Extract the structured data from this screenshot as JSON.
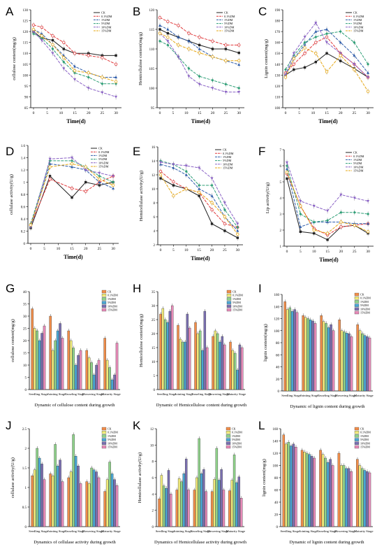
{
  "colors": {
    "series": [
      "#222222",
      "#e0393b",
      "#2f5dab",
      "#2f9f77",
      "#8b63c6",
      "#e6a817"
    ],
    "bars": [
      "#f28e4a",
      "#f0ea7a",
      "#8fd28a",
      "#4aa6d4",
      "#7a6fb0",
      "#e78bb9"
    ]
  },
  "line_legend": [
    "CK",
    "0.1%DM",
    "1%DM",
    "5%DM",
    "10%DM",
    "15%DM"
  ],
  "bar_legend": [
    "CK",
    "0.1%DM",
    "1%DM",
    "5%DM",
    "10%DM",
    "15%DM"
  ],
  "stages": [
    "Seedling Stage",
    "Jointing Stage",
    "Tasseling Stage",
    "Flowering Stage",
    "Maturity Stage"
  ],
  "chart_data": [
    {
      "panel": "A",
      "type": "line",
      "xlabel": "Time(d)",
      "ylabel": "cellulose content(mg/g)",
      "x": [
        0,
        3,
        7,
        11,
        15,
        20,
        25,
        30
      ],
      "xticks": [
        0,
        5,
        10,
        15,
        20,
        25,
        30
      ],
      "ylim": [
        85,
        130
      ],
      "yticks": [
        85,
        90,
        95,
        100,
        105,
        110,
        115,
        120,
        125,
        130
      ],
      "series": [
        {
          "name": "CK",
          "values": [
            120,
            117,
            116,
            112,
            110,
            110,
            109,
            109
          ]
        },
        {
          "name": "0.1%DM",
          "values": [
            123,
            122,
            118,
            115,
            110,
            109,
            108,
            105
          ]
        },
        {
          "name": "1%DM",
          "values": [
            121,
            119,
            114,
            109,
            104,
            101,
            99,
            99
          ]
        },
        {
          "name": "5%DM",
          "values": [
            119,
            117,
            112,
            106,
            101,
            99,
            96,
            96
          ]
        },
        {
          "name": "10%DM",
          "values": [
            120,
            116,
            110,
            103,
            98,
            94,
            92,
            90
          ]
        },
        {
          "name": "15%DM",
          "values": [
            121,
            118,
            114,
            108,
            102,
            101,
            99,
            97
          ]
        }
      ]
    },
    {
      "panel": "B",
      "type": "line",
      "xlabel": "Time(d)",
      "ylabel": "Hemicellulose content(mg/g)",
      "x": [
        0,
        3,
        7,
        11,
        15,
        20,
        25,
        30
      ],
      "xticks": [
        0,
        5,
        10,
        15,
        20,
        25,
        30
      ],
      "ylim": [
        95,
        120
      ],
      "yticks": [
        95,
        100,
        105,
        110,
        115,
        120
      ],
      "series": [
        {
          "name": "CK",
          "values": [
            115,
            114,
            113,
            112,
            111,
            110,
            110,
            109
          ]
        },
        {
          "name": "0.1%DM",
          "values": [
            118,
            117,
            116,
            114,
            113,
            112,
            111,
            111
          ]
        },
        {
          "name": "1%DM",
          "values": [
            116,
            115,
            113,
            112,
            110,
            108,
            107,
            106
          ]
        },
        {
          "name": "5%DM",
          "values": [
            112,
            111,
            108,
            105,
            103,
            102,
            101,
            100
          ]
        },
        {
          "name": "10%DM",
          "values": [
            114,
            112,
            108,
            103,
            101,
            100,
            99,
            99
          ]
        },
        {
          "name": "15%DM",
          "values": [
            114,
            113,
            111,
            110,
            109,
            108,
            107,
            107
          ]
        }
      ]
    },
    {
      "panel": "C",
      "type": "line",
      "xlabel": "Time(d)",
      "ylabel": "Lignin content(mg/g)",
      "x": [
        0,
        3,
        7,
        11,
        15,
        20,
        25,
        30
      ],
      "xticks": [
        0,
        5,
        10,
        15,
        20,
        25,
        30
      ],
      "ylim": [
        100,
        190
      ],
      "yticks": [
        100,
        110,
        120,
        130,
        140,
        150,
        160,
        170,
        180,
        190
      ],
      "series": [
        {
          "name": "CK",
          "values": [
            130,
            135,
            137,
            142,
            150,
            143,
            136,
            128
          ]
        },
        {
          "name": "0.1%DM",
          "values": [
            132,
            140,
            150,
            160,
            165,
            150,
            140,
            128
          ]
        },
        {
          "name": "1%DM",
          "values": [
            130,
            145,
            158,
            170,
            172,
            160,
            148,
            132
          ]
        },
        {
          "name": "5%DM",
          "values": [
            135,
            148,
            160,
            165,
            168,
            170,
            160,
            140
          ]
        },
        {
          "name": "10%DM",
          "values": [
            130,
            150,
            165,
            178,
            160,
            150,
            140,
            128
          ]
        },
        {
          "name": "15%DM",
          "values": [
            128,
            145,
            155,
            150,
            133,
            148,
            135,
            115
          ]
        }
      ]
    },
    {
      "panel": "D",
      "type": "line",
      "xlabel": "Time(d)",
      "ylabel": "cellulase activity(U/g)",
      "x": [
        0,
        7,
        15,
        20,
        25,
        30
      ],
      "xticks": [
        0,
        5,
        10,
        15,
        20,
        25,
        30
      ],
      "ylim": [
        0,
        1.6
      ],
      "yticks": [
        0,
        0.2,
        0.4,
        0.6,
        0.8,
        1.0,
        1.2,
        1.4,
        1.6
      ],
      "series": [
        {
          "name": "CK",
          "values": [
            0.25,
            1.1,
            0.75,
            1.0,
            0.95,
            1.0
          ]
        },
        {
          "name": "0.1%DM",
          "values": [
            0.3,
            1.05,
            0.9,
            0.85,
            1.0,
            1.1
          ]
        },
        {
          "name": "1%DM",
          "values": [
            0.28,
            1.3,
            1.25,
            1.2,
            1.0,
            0.9
          ]
        },
        {
          "name": "5%DM",
          "values": [
            0.32,
            1.35,
            1.35,
            1.25,
            1.1,
            1.0
          ]
        },
        {
          "name": "10%DM",
          "values": [
            0.27,
            1.38,
            1.4,
            1.2,
            1.15,
            1.1
          ]
        },
        {
          "name": "15%DM",
          "values": [
            0.3,
            1.25,
            1.3,
            1.25,
            1.05,
            0.95
          ]
        }
      ]
    },
    {
      "panel": "E",
      "type": "line",
      "xlabel": "Time(d)",
      "ylabel": "Hemicellulase activity(U/g)",
      "x": [
        0,
        5,
        10,
        15,
        20,
        25,
        30
      ],
      "xticks": [
        0,
        5,
        10,
        15,
        20,
        25,
        30
      ],
      "ylim": [
        2,
        16
      ],
      "yticks": [
        2,
        4,
        6,
        8,
        10,
        12,
        14,
        16
      ],
      "series": [
        {
          "name": "CK",
          "values": [
            11.5,
            10.5,
            10,
            9,
            5,
            4,
            3
          ]
        },
        {
          "name": "0.1%DM",
          "values": [
            12.5,
            11,
            10,
            9.5,
            7,
            5,
            4.5
          ]
        },
        {
          "name": "1%DM",
          "values": [
            13.5,
            13,
            12,
            10,
            9,
            6,
            4
          ]
        },
        {
          "name": "5%DM",
          "values": [
            14,
            13.5,
            12.5,
            10.5,
            10.5,
            7,
            4.5
          ]
        },
        {
          "name": "10%DM",
          "values": [
            13.8,
            13.5,
            13.3,
            13,
            11.5,
            8,
            5
          ]
        },
        {
          "name": "15%DM",
          "values": [
            12,
            9,
            10,
            9.5,
            8,
            6,
            3.5
          ]
        }
      ]
    },
    {
      "panel": "F",
      "type": "line",
      "xlabel": "Time(d)",
      "ylabel": "Lip activity(U/g)",
      "x": [
        0,
        5,
        10,
        15,
        20,
        25,
        30
      ],
      "xticks": [
        0,
        5,
        10,
        15,
        20,
        25,
        30
      ],
      "ylim": [
        1,
        7
      ],
      "yticks": [
        1,
        2,
        3,
        4,
        5,
        6,
        7
      ],
      "series": [
        {
          "name": "CK",
          "values": [
            5.2,
            1.9,
            1.8,
            1.4,
            2.2,
            2.3,
            1.8
          ]
        },
        {
          "name": "0.1%DM",
          "values": [
            5.5,
            3.5,
            2.1,
            1.7,
            2.2,
            2.3,
            2.4
          ]
        },
        {
          "name": "1%DM",
          "values": [
            5.8,
            2.2,
            2.5,
            2.5,
            2.5,
            2.4,
            2.4
          ]
        },
        {
          "name": "5%DM",
          "values": [
            6.0,
            3.0,
            2.5,
            2.6,
            3.1,
            3.1,
            3.0
          ]
        },
        {
          "name": "10%DM",
          "values": [
            6.2,
            3.8,
            3.5,
            3.2,
            4.2,
            4.0,
            3.8
          ]
        },
        {
          "name": "15%DM",
          "values": [
            5.6,
            3.5,
            2.0,
            1.8,
            2.5,
            2.3,
            1.9
          ]
        }
      ]
    },
    {
      "panel": "G",
      "type": "bar",
      "xlabel": "Dynamic of cellulose content during growth",
      "ylabel": "cellulose content(mg/g)",
      "ylim": [
        0,
        40
      ],
      "yticks": [
        0,
        5,
        10,
        15,
        20,
        25,
        30,
        35,
        40
      ],
      "series": [
        {
          "name": "CK",
          "values": [
            33,
            30,
            24,
            16,
            21
          ]
        },
        {
          "name": "0.1%DM",
          "values": [
            25,
            16,
            20,
            13,
            12
          ]
        },
        {
          "name": "1%DM",
          "values": [
            24,
            20,
            17,
            11,
            9
          ]
        },
        {
          "name": "5%DM",
          "values": [
            20,
            24,
            10,
            6,
            4
          ]
        },
        {
          "name": "10%DM",
          "values": [
            23,
            27,
            14,
            10,
            6
          ]
        },
        {
          "name": "15%DM",
          "values": [
            26,
            21,
            16,
            12,
            19
          ]
        }
      ]
    },
    {
      "panel": "H",
      "type": "bar",
      "xlabel": "Dynamic of Hemicellulose content during growth",
      "ylabel": "Hemicellulose content(mg/g)",
      "ylim": [
        0,
        35
      ],
      "yticks": [
        0,
        5,
        10,
        15,
        20,
        25,
        30,
        35
      ],
      "series": [
        {
          "name": "CK",
          "values": [
            27,
            23,
            24,
            19,
            17
          ]
        },
        {
          "name": "0.1%DM",
          "values": [
            29,
            18,
            20,
            21,
            14
          ]
        },
        {
          "name": "1%DM",
          "values": [
            25,
            17,
            21,
            20,
            13
          ]
        },
        {
          "name": "5%DM",
          "values": [
            24,
            17,
            14,
            17,
            7
          ]
        },
        {
          "name": "10%DM",
          "values": [
            28,
            27,
            28,
            19,
            16
          ]
        },
        {
          "name": "15%DM",
          "values": [
            30,
            22,
            15,
            16,
            15
          ]
        }
      ]
    },
    {
      "panel": "I",
      "type": "bar",
      "xlabel": "Dynamic of lignin content during growth",
      "ylabel": "lignin content(mg/g)",
      "ylim": [
        0,
        160
      ],
      "yticks": [
        0,
        20,
        40,
        60,
        80,
        100,
        120,
        140,
        160
      ],
      "series": [
        {
          "name": "CK",
          "values": [
            148,
            125,
            125,
            118,
            110
          ]
        },
        {
          "name": "0.1%DM",
          "values": [
            135,
            122,
            115,
            100,
            100
          ]
        },
        {
          "name": "1%DM",
          "values": [
            138,
            120,
            112,
            98,
            95
          ]
        },
        {
          "name": "5%DM",
          "values": [
            132,
            118,
            105,
            96,
            92
          ]
        },
        {
          "name": "10%DM",
          "values": [
            135,
            116,
            110,
            95,
            90
          ]
        },
        {
          "name": "15%DM",
          "values": [
            130,
            112,
            100,
            90,
            88
          ]
        }
      ]
    },
    {
      "panel": "J",
      "type": "bar",
      "xlabel": "Dynamics of cellulase activity during growth",
      "ylabel": "cellulase activity(U/g)",
      "ylim": [
        0,
        2.5
      ],
      "yticks": [
        0,
        0.5,
        1.0,
        1.5,
        2.0,
        2.5
      ],
      "series": [
        {
          "name": "CK",
          "values": [
            1.3,
            1.35,
            1.25,
            1.15,
            0.9
          ]
        },
        {
          "name": "0.1%DM",
          "values": [
            1.45,
            1.3,
            1.4,
            1.1,
            1.2
          ]
        },
        {
          "name": "1%DM",
          "values": [
            2.0,
            2.1,
            2.35,
            1.5,
            1.65
          ]
        },
        {
          "name": "5%DM",
          "values": [
            1.75,
            1.55,
            1.8,
            1.45,
            1.35
          ]
        },
        {
          "name": "10%DM",
          "values": [
            1.6,
            1.7,
            1.55,
            1.4,
            1.2
          ]
        },
        {
          "name": "15%DM",
          "values": [
            1.2,
            1.15,
            1.1,
            1.25,
            1.05
          ]
        }
      ]
    },
    {
      "panel": "K",
      "type": "bar",
      "xlabel": "Dynamics of Hemicellulase activity during growth",
      "ylabel": "Hemicellulase activity(U/g)",
      "ylim": [
        0,
        12
      ],
      "yticks": [
        0,
        2,
        4,
        6,
        8,
        10,
        12
      ],
      "series": [
        {
          "name": "CK",
          "values": [
            3.4,
            4.5,
            4.5,
            4.3,
            4.4
          ]
        },
        {
          "name": "0.1%DM",
          "values": [
            6.3,
            5.9,
            6.0,
            5.8,
            5.7
          ]
        },
        {
          "name": "1%DM",
          "values": [
            5.0,
            5.5,
            10.8,
            9.6,
            8.8
          ]
        },
        {
          "name": "5%DM",
          "values": [
            4.7,
            6.5,
            6.5,
            5.7,
            5.4
          ]
        },
        {
          "name": "10%DM",
          "values": [
            6.9,
            8.3,
            7.0,
            7.0,
            6.1
          ]
        },
        {
          "name": "15%DM",
          "values": [
            4.0,
            4.5,
            4.3,
            4.5,
            3.5
          ]
        }
      ]
    },
    {
      "panel": "L",
      "type": "bar",
      "xlabel": "Dynamic of lignin content during growth",
      "ylabel": "lignin content(mg/g)",
      "ylim": [
        0,
        160
      ],
      "yticks": [
        0,
        20,
        40,
        60,
        80,
        100,
        120,
        140,
        160
      ],
      "series": [
        {
          "name": "CK",
          "values": [
            150,
            125,
            125,
            120,
            110
          ]
        },
        {
          "name": "0.1%DM",
          "values": [
            135,
            122,
            118,
            100,
            100
          ]
        },
        {
          "name": "1%DM",
          "values": [
            138,
            120,
            112,
            100,
            95
          ]
        },
        {
          "name": "5%DM",
          "values": [
            132,
            118,
            105,
            95,
            92
          ]
        },
        {
          "name": "10%DM",
          "values": [
            135,
            115,
            110,
            95,
            90
          ]
        },
        {
          "name": "15%DM",
          "values": [
            130,
            112,
            100,
            90,
            88
          ]
        }
      ]
    }
  ]
}
